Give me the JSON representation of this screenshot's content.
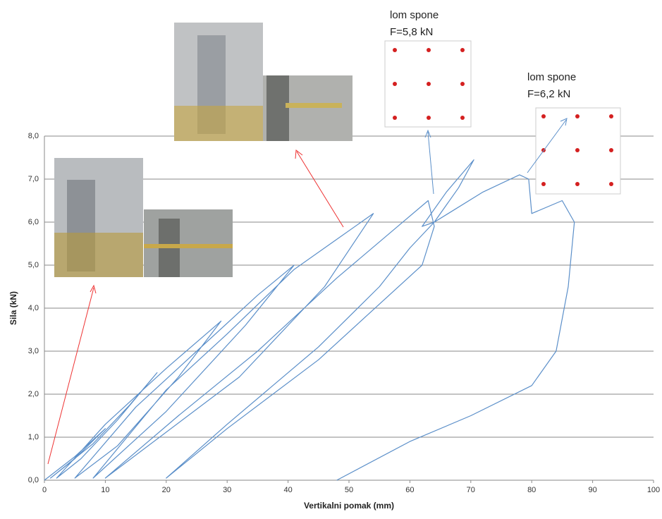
{
  "chart_data": {
    "type": "line",
    "x_label": "Vertikalni pomak (mm)",
    "y_label": "Sila (kN)",
    "xlim": [
      0,
      100
    ],
    "xticks": [
      0,
      10,
      20,
      30,
      40,
      50,
      60,
      70,
      80,
      90,
      100
    ],
    "ylim": [
      0,
      8
    ],
    "yticks": [
      {
        "value": 0,
        "label": "0,0"
      },
      {
        "value": 1,
        "label": "1,0"
      },
      {
        "value": 2,
        "label": "2,0"
      },
      {
        "value": 3,
        "label": "3,0"
      },
      {
        "value": 4,
        "label": "4,0"
      },
      {
        "value": 5,
        "label": "5,0"
      },
      {
        "value": 6,
        "label": "6,0"
      },
      {
        "value": 7,
        "label": "7,0"
      },
      {
        "value": 8,
        "label": "8,0"
      }
    ],
    "grid": true,
    "series": [
      {
        "color": "#5b8fc9",
        "x": [
          0,
          5,
          10,
          5,
          1,
          8,
          14,
          18.5,
          12,
          6,
          2,
          10,
          20,
          29,
          22,
          12,
          5,
          15,
          25,
          35,
          41,
          33,
          20,
          8,
          20,
          30,
          41,
          48,
          54,
          46,
          32,
          10,
          22,
          35,
          48,
          58,
          63,
          64,
          62,
          45,
          30,
          20,
          30,
          45,
          55,
          60,
          64,
          68,
          70.5,
          66,
          62,
          64,
          72,
          78,
          79.5,
          80,
          85,
          87,
          86,
          84,
          80,
          70,
          60,
          48
        ],
        "values": [
          0,
          0.55,
          1.2,
          0.5,
          0.05,
          0.85,
          1.75,
          2.5,
          1.4,
          0.5,
          0.05,
          1.3,
          2.6,
          3.7,
          2.4,
          0.8,
          0.05,
          1.7,
          3.0,
          4.3,
          5.0,
          3.6,
          1.6,
          0.05,
          2.1,
          3.4,
          4.9,
          5.6,
          6.2,
          4.5,
          2.4,
          0.05,
          1.5,
          3.0,
          4.7,
          5.9,
          6.5,
          5.9,
          5.0,
          2.8,
          1.2,
          0.05,
          1.3,
          3.1,
          4.5,
          5.4,
          6.0,
          6.8,
          7.45,
          6.7,
          5.9,
          6.0,
          6.7,
          7.1,
          7.0,
          6.2,
          6.5,
          6.0,
          4.5,
          3.0,
          2.2,
          1.5,
          0.9,
          0
        ]
      }
    ],
    "annotations": [
      {
        "lines": [
          "lom spone",
          "F=5,8 kN"
        ]
      },
      {
        "lines": [
          "lom spone",
          "F=6,2 kN"
        ]
      }
    ]
  }
}
